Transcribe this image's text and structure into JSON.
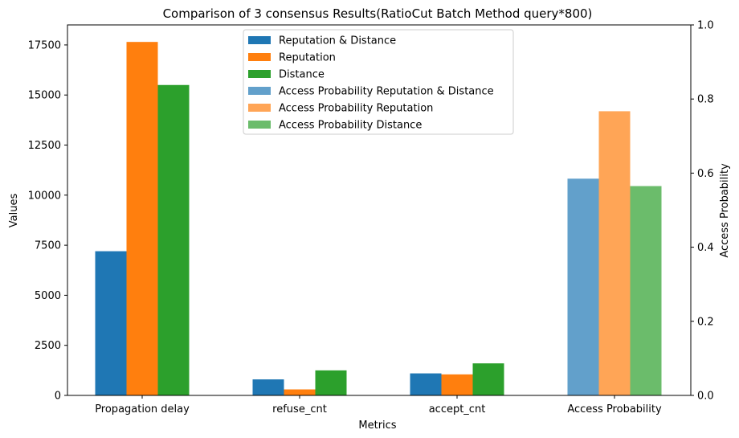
{
  "chart_data": {
    "type": "bar",
    "title": "Comparison of 3 consensus Results(RatioCut Batch Method query*800)",
    "xlabel": "Metrics",
    "ylabel": "Values",
    "y2label": "Access Probability",
    "categories": [
      "Propagation delay",
      "refuse_cnt",
      "accept_cnt",
      "Access Probability"
    ],
    "ylim": [
      0,
      18500
    ],
    "y2lim": [
      0,
      1.0
    ],
    "yticks": [
      0,
      2500,
      5000,
      7500,
      10000,
      12500,
      15000,
      17500
    ],
    "y2ticks": [
      0.0,
      0.2,
      0.4,
      0.6,
      0.8,
      1.0
    ],
    "series": [
      {
        "name": "Reputation & Distance",
        "axis": "left",
        "color": "#1f77b4",
        "values": [
          7200,
          800,
          1100,
          null
        ]
      },
      {
        "name": "Reputation",
        "axis": "left",
        "color": "#ff7f0e",
        "values": [
          17650,
          300,
          1050,
          null
        ]
      },
      {
        "name": "Distance",
        "axis": "left",
        "color": "#2ca02c",
        "values": [
          15500,
          1250,
          1600,
          null
        ]
      },
      {
        "name": "Access Probability Reputation & Distance",
        "axis": "right",
        "color": "#62a0cb",
        "values": [
          null,
          null,
          null,
          0.585
        ]
      },
      {
        "name": "Access Probability Reputation",
        "axis": "right",
        "color": "#ffa556",
        "values": [
          null,
          null,
          null,
          0.767
        ]
      },
      {
        "name": "Access Probability Distance",
        "axis": "right",
        "color": "#6bbc6b",
        "values": [
          null,
          null,
          null,
          0.565
        ]
      }
    ],
    "legend_position": "upper center",
    "grid": false
  }
}
